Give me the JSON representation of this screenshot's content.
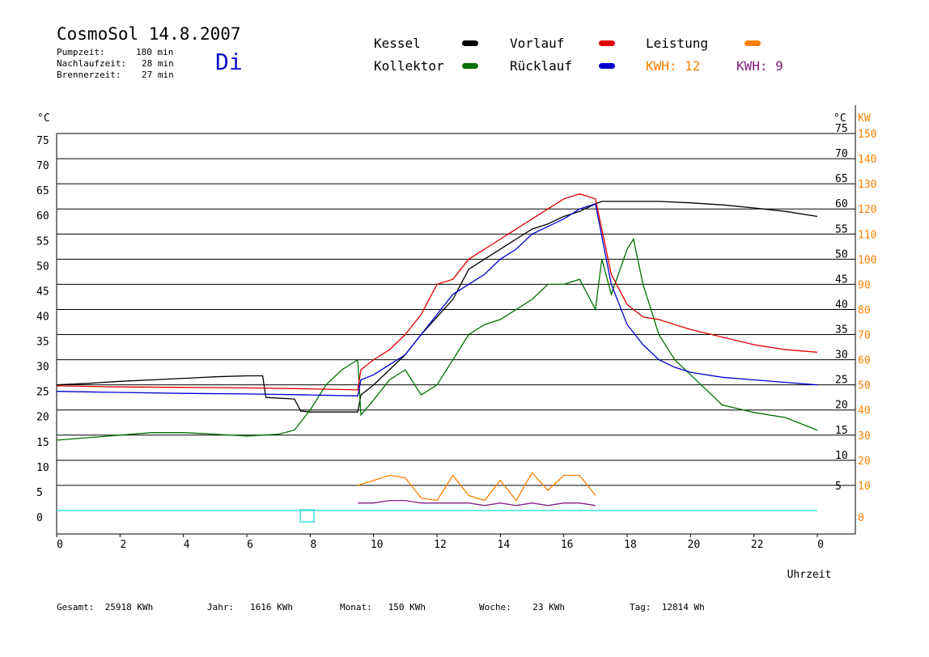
{
  "header": {
    "title": "CosmoSol 14.8.2007",
    "day": "Di",
    "pump_label": "Pumpzeit:",
    "pump_value": "180 min",
    "nach_label": "Nachlaufzeit:",
    "nach_value": "28 min",
    "brenner_label": "Brennerzeit:",
    "brenner_value": "27 min"
  },
  "legend": {
    "kessel": "Kessel",
    "kollektor": "Kollektor",
    "vorlauf": "Vorlauf",
    "ruecklauf": "Rücklauf",
    "leistung": "Leistung",
    "kwh1": "KWH: 12",
    "kwh2": "KWH: 9"
  },
  "footer": {
    "gesamt": "Gesamt:  25918 KWh",
    "jahr": "Jahr:   1616 KWh",
    "monat": "Monat:   150 KWh",
    "woche": "Woche:    23 KWh",
    "tag": "Tag:  12814 Wh"
  },
  "colors": {
    "kessel": "#000000",
    "kollektor": "#007000",
    "vorlauf": "#e00000",
    "ruecklauf": "#0000d0",
    "leistung": "#ff8000",
    "kwh2": "#802080",
    "zero": "#40e0e0"
  },
  "chart_data": {
    "type": "line",
    "xlabel": "Uhrzeit",
    "left_unit": "°C",
    "right_unit_temp": "°C",
    "right_unit_power": "KW",
    "xlim": [
      0,
      24
    ],
    "ylim": [
      0,
      75
    ],
    "x_ticks": [
      "0",
      "2",
      "4",
      "6",
      "8",
      "10",
      "12",
      "14",
      "16",
      "18",
      "20",
      "22",
      "0"
    ],
    "y_ticks": [
      0,
      5,
      10,
      15,
      20,
      25,
      30,
      35,
      40,
      45,
      50,
      55,
      60,
      65,
      70,
      75
    ],
    "right_temp_ticks": [
      "5",
      "10",
      "15",
      "20",
      "25",
      "30",
      "35",
      "40",
      "45",
      "50",
      "55",
      "60",
      "65",
      "70",
      "75"
    ],
    "right_power_ticks": [
      "0",
      "10",
      "20",
      "30",
      "40",
      "50",
      "60",
      "70",
      "80",
      "90",
      "100",
      "110",
      "120",
      "130",
      "140",
      "150"
    ],
    "series": [
      {
        "name": "Kessel",
        "x": [
          0,
          1,
          2,
          3,
          4,
          5,
          6,
          6.5,
          6.6,
          7.5,
          7.7,
          8,
          9,
          9.5,
          9.6,
          10,
          10.5,
          11,
          11.5,
          12,
          12.5,
          13,
          13.5,
          14,
          14.5,
          15,
          15.5,
          16,
          16.5,
          17,
          17.2,
          18,
          19,
          20,
          21,
          22,
          23,
          24
        ],
        "values": [
          25,
          25.3,
          25.7,
          26,
          26.3,
          26.6,
          26.8,
          26.8,
          22.5,
          22.2,
          19.8,
          19.6,
          19.6,
          19.6,
          23,
          25,
          28,
          31,
          35,
          38.5,
          42,
          48,
          50,
          52,
          54,
          56,
          57,
          58.5,
          59.5,
          61,
          61.5,
          61.5,
          61.5,
          61.2,
          60.8,
          60.2,
          59.5,
          58.5
        ]
      },
      {
        "name": "Kollektor",
        "x": [
          0,
          1,
          2,
          3,
          4,
          5,
          6,
          6.5,
          7,
          7.5,
          8,
          8.5,
          9,
          9.5,
          9.6,
          10,
          10.5,
          11,
          11.5,
          12,
          12.5,
          13,
          13.5,
          14,
          14.5,
          15,
          15.5,
          16,
          16.5,
          17,
          17.2,
          17.5,
          18,
          18.2,
          18.5,
          19,
          19.5,
          20,
          21,
          22,
          23,
          24
        ],
        "values": [
          14,
          14.5,
          15,
          15.5,
          15.5,
          15.2,
          14.8,
          15,
          15.2,
          16,
          20,
          25,
          28,
          30,
          19,
          22,
          26,
          28,
          23,
          25,
          30,
          35,
          37,
          38,
          40,
          42,
          45,
          45,
          46,
          40,
          50,
          43,
          52,
          54,
          45,
          35,
          30,
          27,
          21,
          19.5,
          18.5,
          16
        ]
      },
      {
        "name": "Vorlauf",
        "x": [
          0,
          2,
          4,
          6,
          8,
          9.5,
          9.6,
          10,
          10.5,
          11,
          11.5,
          12,
          12.5,
          13,
          13.5,
          14,
          14.5,
          15,
          15.5,
          16,
          16.5,
          17,
          17.5,
          18,
          18.5,
          19,
          19.5,
          20,
          21,
          22,
          23,
          24
        ],
        "values": [
          24.8,
          24.6,
          24.5,
          24.4,
          24.2,
          24,
          28,
          30,
          32,
          35,
          39,
          45,
          46,
          50,
          52,
          54,
          56,
          58,
          60,
          62,
          63,
          62,
          47,
          41,
          38.5,
          38,
          37,
          36,
          34.5,
          33,
          32,
          31.5
        ]
      },
      {
        "name": "Rücklauf",
        "x": [
          0,
          2,
          4,
          6,
          8,
          9.5,
          9.6,
          10,
          10.5,
          11,
          11.5,
          12,
          12.5,
          13,
          13.5,
          14,
          14.5,
          15,
          15.5,
          16,
          16.5,
          17,
          17.5,
          18,
          18.5,
          19,
          19.5,
          20,
          21,
          22,
          23,
          24
        ],
        "values": [
          23.7,
          23.5,
          23.3,
          23.2,
          23,
          22.8,
          26,
          27,
          29,
          31,
          35,
          39,
          43,
          45,
          47,
          50,
          52,
          55,
          56.5,
          58,
          60,
          61,
          45,
          37,
          33,
          30,
          28.5,
          27.5,
          26.5,
          26,
          25.5,
          25
        ]
      },
      {
        "name": "Leistung",
        "x": [
          9.5,
          10,
          10.5,
          11,
          11.5,
          12,
          12.5,
          13,
          13.5,
          14,
          14.5,
          15,
          15.5,
          16,
          16.5,
          17
        ],
        "values": [
          10,
          12,
          14,
          13,
          5,
          4,
          14,
          6,
          4,
          12,
          4,
          15,
          8,
          14,
          14,
          6
        ]
      },
      {
        "name": "KWH: 9",
        "x": [
          9.5,
          10,
          10.5,
          11,
          11.5,
          12,
          12.5,
          13,
          13.5,
          14,
          14.5,
          15,
          15.5,
          16,
          16.5,
          17
        ],
        "values": [
          3,
          3,
          4,
          4,
          3,
          3,
          3,
          3,
          2,
          3,
          2,
          3,
          2,
          3,
          3,
          2
        ]
      }
    ]
  }
}
